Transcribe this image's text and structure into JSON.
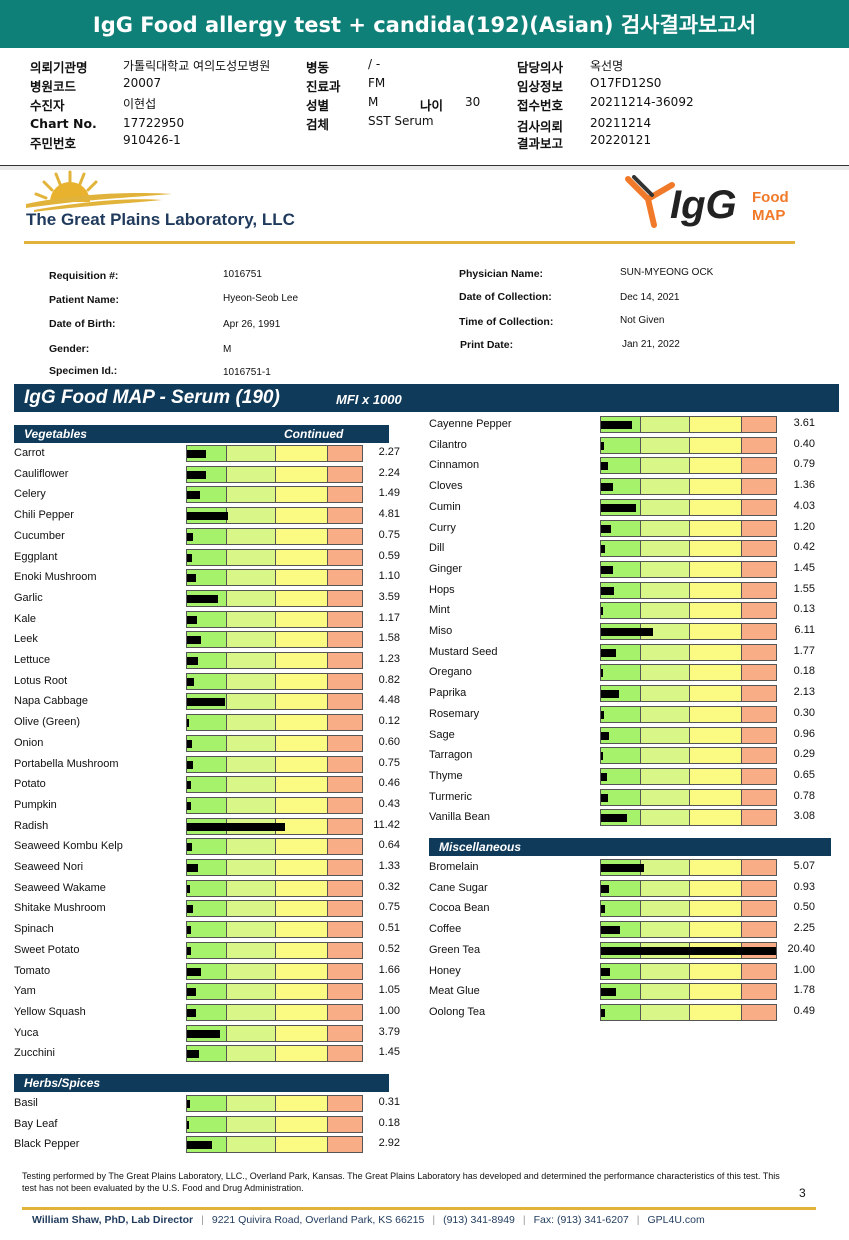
{
  "banner": {
    "title": "IgG Food allergy test + candida(192)(Asian) 검사결과보고서"
  },
  "header": {
    "left": [
      {
        "label": "의뢰기관명",
        "value": "가톨릭대학교 여의도성모병원"
      },
      {
        "label": "병원코드",
        "value": "20007"
      },
      {
        "label": "수진자",
        "value": "이현섭"
      },
      {
        "label": "Chart No.",
        "value": "17722950"
      },
      {
        "label": "주민번호",
        "value": "910426-1"
      }
    ],
    "mid": [
      {
        "label": "병동",
        "value": "/ -"
      },
      {
        "label": "진료과",
        "value": "FM"
      },
      {
        "label": "성별",
        "value": "M"
      },
      {
        "label": "검체",
        "value": "SST Serum"
      }
    ],
    "age": {
      "label": "나이",
      "value": "30"
    },
    "right": [
      {
        "label": "담당의사",
        "value": "옥선명"
      },
      {
        "label": "임상정보",
        "value": "O17FD12S0"
      },
      {
        "label": "접수번호",
        "value": "20211214-36092"
      },
      {
        "label": "검사의뢰",
        "value": "20211214"
      },
      {
        "label": "결과보고",
        "value": "20220121"
      }
    ]
  },
  "lab": {
    "name": "The Great Plains Laboratory, LLC",
    "brand_word": "IgG",
    "brand_sub1": "Food",
    "brand_sub2": "MAP"
  },
  "patient": {
    "left": [
      {
        "label": "Requisition #:",
        "value": "1016751"
      },
      {
        "label": "Patient Name:",
        "value": "Hyeon-Seob Lee"
      },
      {
        "label": "Date of Birth:",
        "value": "Apr 26, 1991"
      },
      {
        "label": "Gender:",
        "value": "M"
      },
      {
        "label": "Specimen Id.:",
        "value": "1016751-1"
      }
    ],
    "right": [
      {
        "label": "Physician Name:",
        "value": "SUN-MYEONG OCK"
      },
      {
        "label": "Date of Collection:",
        "value": "Dec 14, 2021"
      },
      {
        "label": "Time of Collection:",
        "value": "Not Given"
      },
      {
        "label": "Print Date:",
        "value": "Jan 21, 2022"
      }
    ]
  },
  "report": {
    "title": "IgG Food MAP - Serum (190)",
    "unit": "MFI x 1000",
    "scale_max": 20.4,
    "continued_label": "Continued",
    "sections": {
      "vegetables": {
        "label": "Vegetables",
        "items": [
          {
            "name": "Carrot",
            "value": 2.27
          },
          {
            "name": "Cauliflower",
            "value": 2.24
          },
          {
            "name": "Celery",
            "value": 1.49
          },
          {
            "name": "Chili Pepper",
            "value": 4.81
          },
          {
            "name": "Cucumber",
            "value": 0.75
          },
          {
            "name": "Eggplant",
            "value": 0.59
          },
          {
            "name": "Enoki Mushroom",
            "value": 1.1
          },
          {
            "name": "Garlic",
            "value": 3.59
          },
          {
            "name": "Kale",
            "value": 1.17
          },
          {
            "name": "Leek",
            "value": 1.58
          },
          {
            "name": "Lettuce",
            "value": 1.23
          },
          {
            "name": "Lotus Root",
            "value": 0.82
          },
          {
            "name": "Napa Cabbage",
            "value": 4.48
          },
          {
            "name": "Olive (Green)",
            "value": 0.12
          },
          {
            "name": "Onion",
            "value": 0.6
          },
          {
            "name": "Portabella Mushroom",
            "value": 0.75
          },
          {
            "name": "Potato",
            "value": 0.46
          },
          {
            "name": "Pumpkin",
            "value": 0.43
          },
          {
            "name": "Radish",
            "value": 11.42
          },
          {
            "name": "Seaweed Kombu Kelp",
            "value": 0.64
          },
          {
            "name": "Seaweed Nori",
            "value": 1.33
          },
          {
            "name": "Seaweed Wakame",
            "value": 0.32
          },
          {
            "name": "Shitake Mushroom",
            "value": 0.75
          },
          {
            "name": "Spinach",
            "value": 0.51
          },
          {
            "name": "Sweet Potato",
            "value": 0.52
          },
          {
            "name": "Tomato",
            "value": 1.66
          },
          {
            "name": "Yam",
            "value": 1.05
          },
          {
            "name": "Yellow Squash",
            "value": 1.0
          },
          {
            "name": "Yuca",
            "value": 3.79
          },
          {
            "name": "Zucchini",
            "value": 1.45
          }
        ]
      },
      "herbs_left": {
        "label": "Herbs/Spices",
        "items": [
          {
            "name": "Basil",
            "value": 0.31
          },
          {
            "name": "Bay Leaf",
            "value": 0.18
          },
          {
            "name": "Black Pepper",
            "value": 2.92
          }
        ]
      },
      "herbs_right": {
        "items": [
          {
            "name": "Cayenne Pepper",
            "value": 3.61
          },
          {
            "name": "Cilantro",
            "value": 0.4
          },
          {
            "name": "Cinnamon",
            "value": 0.79
          },
          {
            "name": "Cloves",
            "value": 1.36
          },
          {
            "name": "Cumin",
            "value": 4.03
          },
          {
            "name": "Curry",
            "value": 1.2
          },
          {
            "name": "Dill",
            "value": 0.42
          },
          {
            "name": "Ginger",
            "value": 1.45
          },
          {
            "name": "Hops",
            "value": 1.55
          },
          {
            "name": "Mint",
            "value": 0.13
          },
          {
            "name": "Miso",
            "value": 6.11
          },
          {
            "name": "Mustard Seed",
            "value": 1.77
          },
          {
            "name": "Oregano",
            "value": 0.18
          },
          {
            "name": "Paprika",
            "value": 2.13
          },
          {
            "name": "Rosemary",
            "value": 0.3
          },
          {
            "name": "Sage",
            "value": 0.96
          },
          {
            "name": "Tarragon",
            "value": 0.29
          },
          {
            "name": "Thyme",
            "value": 0.65
          },
          {
            "name": "Turmeric",
            "value": 0.78
          },
          {
            "name": "Vanilla Bean",
            "value": 3.08
          }
        ]
      },
      "misc": {
        "label": "Miscellaneous",
        "items": [
          {
            "name": "Bromelain",
            "value": 5.07
          },
          {
            "name": "Cane Sugar",
            "value": 0.93
          },
          {
            "name": "Cocoa Bean",
            "value": 0.5
          },
          {
            "name": "Coffee",
            "value": 2.25
          },
          {
            "name": "Green Tea",
            "value": 20.4
          },
          {
            "name": "Honey",
            "value": 1.0
          },
          {
            "name": "Meat Glue",
            "value": 1.78
          },
          {
            "name": "Oolong Tea",
            "value": 0.49
          }
        ]
      }
    }
  },
  "footer": {
    "note": "Testing performed by The Great Plains Laboratory, LLC., Overland Park, Kansas.  The Great Plains Laboratory has developed and determined the performance characteristics of this test.  This test has not been evaluated by the U.S.  Food and Drug Administration.",
    "page": "3",
    "director": "William Shaw, PhD, Lab Director",
    "address": "9221 Quivira Road, Overland Park, KS 66215",
    "phone": "(913) 341-8949",
    "fax": "Fax: (913) 341-6207",
    "web": "GPL4U.com"
  },
  "colors": {
    "banner": "#0f8078",
    "navy": "#103a5a",
    "gold": "#e2b33a",
    "zone1": "#a6f26a",
    "zone2": "#d9f788",
    "zone3": "#fbfb84",
    "zone4": "#f9ad86"
  }
}
